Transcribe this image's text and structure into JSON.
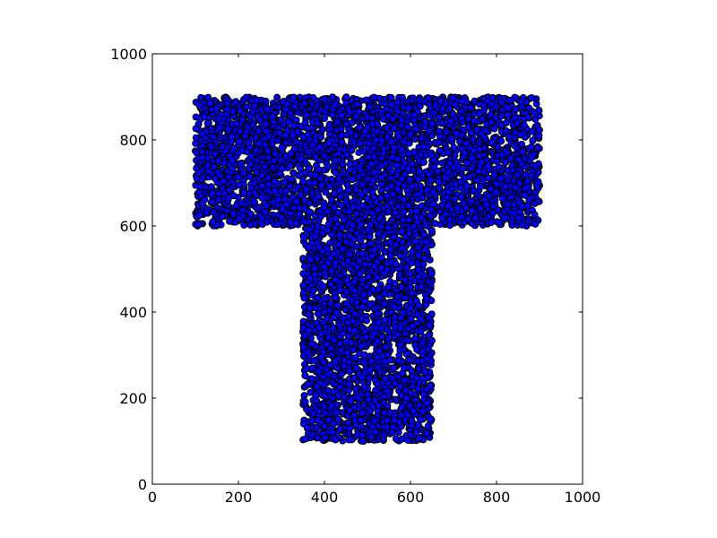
{
  "chart_data": {
    "type": "scatter",
    "title": "",
    "xlabel": "",
    "ylabel": "",
    "xlim": [
      0,
      1000
    ],
    "ylim": [
      0,
      1000
    ],
    "x_ticks": [
      0,
      200,
      400,
      600,
      800,
      1000
    ],
    "y_ticks": [
      0,
      200,
      400,
      600,
      800,
      1000
    ],
    "x_tick_labels": [
      "0",
      "200",
      "400",
      "600",
      "800",
      "1000"
    ],
    "y_tick_labels": [
      "0",
      "200",
      "400",
      "600",
      "800",
      "1000"
    ],
    "grid": false,
    "legend": false,
    "marker_color": "#0000ff",
    "marker_edge_color": "#000000",
    "point_distribution": "dense uniform fill of a T shape",
    "shape_regions": [
      {
        "name": "top bar",
        "x": [
          100,
          900
        ],
        "y": [
          600,
          900
        ]
      },
      {
        "name": "stem",
        "x": [
          350,
          650
        ],
        "y": [
          100,
          600
        ]
      }
    ],
    "approx_point_count": 6000
  }
}
